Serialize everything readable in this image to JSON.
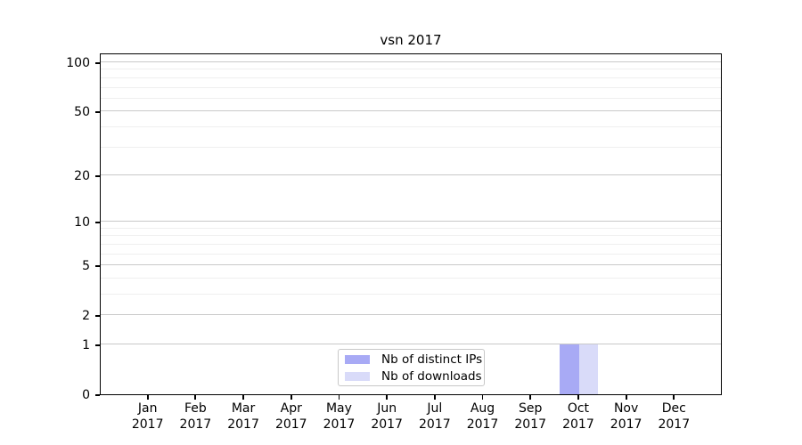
{
  "figure": {
    "title": "vsn 2017"
  },
  "chart_data": {
    "type": "bar",
    "title": "vsn 2017",
    "categories": [
      "Jan",
      "Feb",
      "Mar",
      "Apr",
      "May",
      "Jun",
      "Jul",
      "Aug",
      "Sep",
      "Oct",
      "Nov",
      "Dec"
    ],
    "x_sub_label": "2017",
    "series": [
      {
        "name": "Nb of distinct IPs",
        "color": "#a8aaf5",
        "values": [
          0,
          0,
          0,
          0,
          0,
          0,
          0,
          0,
          0,
          1,
          0,
          0
        ]
      },
      {
        "name": "Nb of downloads",
        "color": "#d9dbf9",
        "values": [
          0,
          0,
          0,
          0,
          0,
          0,
          0,
          0,
          0,
          1,
          0,
          0
        ]
      }
    ],
    "y_axis": {
      "scale": "log1p",
      "tick_labels": [
        0,
        1,
        2,
        5,
        10,
        20,
        50,
        100
      ],
      "minor_gridlines": [
        3,
        4,
        6,
        7,
        8,
        9,
        30,
        40,
        60,
        70,
        80,
        90
      ],
      "y_max": 114.8
    },
    "legend": {
      "position": "lower center",
      "entries": [
        "Nb of distinct IPs",
        "Nb of downloads"
      ]
    },
    "colors": {
      "major_grid": "#c9c9c9",
      "minor_grid": "#efefef",
      "axis": "#000000",
      "background": "#ffffff"
    }
  }
}
